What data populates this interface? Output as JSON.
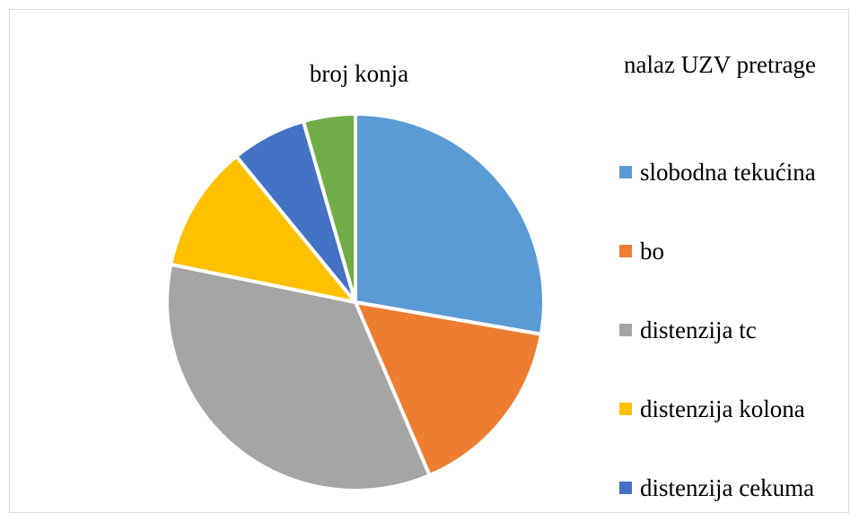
{
  "chart_data": {
    "type": "pie",
    "title": "broj konja",
    "legend_title": "nalaz UZV pretrage",
    "legend_position": "right",
    "categories": [
      "slobodna tekućina",
      "bo",
      "distenzija tc",
      "distenzija kolona",
      "distenzija cekuma",
      ""
    ],
    "values": [
      28,
      16,
      35,
      11,
      6.5,
      4.5
    ],
    "colors": [
      "#5B9BD5",
      "#ED7D31",
      "#A5A5A5",
      "#FFC000",
      "#4472C4",
      "#70AD47"
    ],
    "legend_entries": [
      {
        "label": "slobodna tekućina",
        "color": "#5B9BD5"
      },
      {
        "label": "bo",
        "color": "#ED7D31"
      },
      {
        "label": "distenzija tc",
        "color": "#A5A5A5"
      },
      {
        "label": "distenzija kolona",
        "color": "#FFC000"
      },
      {
        "label": "distenzija cekuma",
        "color": "#4472C4"
      }
    ]
  }
}
